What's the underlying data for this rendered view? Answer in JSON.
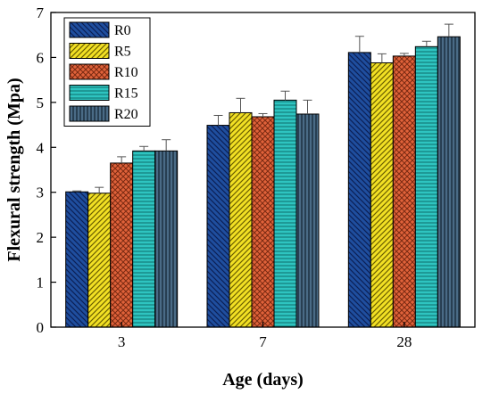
{
  "chart_data": {
    "type": "bar",
    "title": "",
    "xlabel": "Age (days)",
    "ylabel": "Flexural strength (Mpa)",
    "ylim": [
      0,
      7
    ],
    "yticks": [
      "0",
      "1",
      "2",
      "3",
      "4",
      "5",
      "6",
      "7"
    ],
    "categories": [
      "3",
      "7",
      "28"
    ],
    "legend_position": "top-left",
    "grid": false,
    "series": [
      {
        "name": "R0",
        "values": [
          3.01,
          4.49,
          6.11
        ],
        "errors": [
          0.02,
          0.22,
          0.36
        ],
        "color": "#1f4e9e",
        "pattern": "diagonal-back"
      },
      {
        "name": "R5",
        "values": [
          2.98,
          4.77,
          5.88
        ],
        "errors": [
          0.13,
          0.32,
          0.2
        ],
        "color": "#f2e024",
        "pattern": "diagonal-forward"
      },
      {
        "name": "R10",
        "values": [
          3.65,
          4.68,
          6.03
        ],
        "errors": [
          0.14,
          0.07,
          0.06
        ],
        "color": "#e0623a",
        "pattern": "crosshatch"
      },
      {
        "name": "R15",
        "values": [
          3.92,
          5.05,
          6.24
        ],
        "errors": [
          0.1,
          0.2,
          0.12
        ],
        "color": "#2ec4c0",
        "pattern": "horizontal"
      },
      {
        "name": "R20",
        "values": [
          3.92,
          4.74,
          6.46
        ],
        "errors": [
          0.25,
          0.31,
          0.28
        ],
        "color": "#2f4b63",
        "pattern": "vertical"
      }
    ]
  }
}
